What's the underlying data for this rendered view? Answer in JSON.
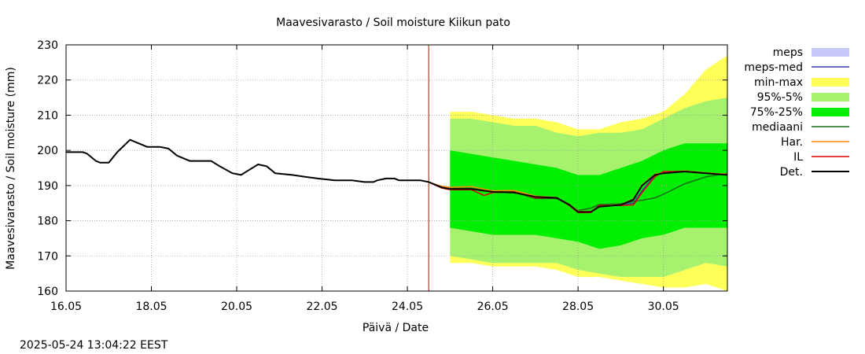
{
  "chart_data": {
    "type": "line",
    "title": "Maavesivarasto / Soil moisture   Kiikun pato",
    "xlabel": "Päivä / Date",
    "ylabel": "Maavesivarasto / Soil moisture (mm)",
    "timestamp": "2025-05-24 13:04:22 EEST",
    "xlim": [
      16.0,
      31.5
    ],
    "ylim": [
      160,
      230
    ],
    "x_unit": "day of May 2025",
    "x_ticks": [
      16,
      18,
      20,
      22,
      24,
      26,
      28,
      30
    ],
    "x_tick_labels": [
      "16.05",
      "18.05",
      "20.05",
      "22.05",
      "24.05",
      "26.05",
      "28.05",
      "30.05"
    ],
    "y_ticks": [
      160,
      170,
      180,
      190,
      200,
      210,
      220,
      230
    ],
    "grid": true,
    "legend_position": "right",
    "forecast_start": 24.5,
    "legend": [
      {
        "label": "meps",
        "color": "#c8c8f8",
        "kind": "band"
      },
      {
        "label": "meps-med",
        "color": "#3a3aa8",
        "kind": "line"
      },
      {
        "label": "min-max",
        "color": "#ffff5a",
        "kind": "band"
      },
      {
        "label": "95%-5%",
        "color": "#a6f26e",
        "kind": "band"
      },
      {
        "label": "75%-25%",
        "color": "#00ee00",
        "kind": "band"
      },
      {
        "label": "mediaani",
        "color": "#1a6e1a",
        "kind": "line"
      },
      {
        "label": "Har.",
        "color": "#ff8c00",
        "kind": "line"
      },
      {
        "label": "IL",
        "color": "#e00000",
        "kind": "line"
      },
      {
        "label": "Det.",
        "color": "#000000",
        "kind": "line"
      }
    ],
    "colors": {
      "forecast_line": "#cc0000",
      "grid": "#a0a0a0"
    },
    "bands": {
      "min-max": {
        "x": [
          25.0,
          25.5,
          26.0,
          26.5,
          27.0,
          27.5,
          28.0,
          28.5,
          29.0,
          29.5,
          30.0,
          30.5,
          31.0,
          31.5
        ],
        "upper": [
          211,
          211,
          210,
          209,
          209,
          208,
          206,
          206,
          208,
          209,
          211,
          216,
          223,
          227
        ],
        "lower": [
          168,
          168,
          167,
          167,
          167,
          166,
          164,
          164,
          163,
          162,
          161,
          161,
          162,
          160
        ]
      },
      "95%-5%": {
        "x": [
          25.0,
          25.5,
          26.0,
          26.5,
          27.0,
          27.5,
          28.0,
          28.5,
          29.0,
          29.5,
          30.0,
          30.5,
          31.0,
          31.5
        ],
        "upper": [
          209,
          209,
          208,
          207,
          207,
          205,
          204,
          205,
          205,
          206,
          209,
          212,
          214,
          215
        ],
        "lower": [
          170,
          169,
          168,
          168,
          168,
          168,
          166,
          165,
          164,
          164,
          164,
          166,
          168,
          167
        ]
      },
      "75%-25%": {
        "x": [
          25.0,
          25.5,
          26.0,
          26.5,
          27.0,
          27.5,
          28.0,
          28.5,
          29.0,
          29.5,
          30.0,
          30.5,
          31.0,
          31.5
        ],
        "upper": [
          200,
          199,
          198,
          197,
          196,
          195,
          193,
          193,
          195,
          197,
          200,
          202,
          202,
          202
        ],
        "lower": [
          178,
          177,
          176,
          176,
          176,
          175,
          174,
          172,
          173,
          175,
          176,
          178,
          178,
          178
        ]
      }
    },
    "series": [
      {
        "name": "Det.",
        "x": [
          16.0,
          16.4,
          16.5,
          16.7,
          16.8,
          17.0,
          17.2,
          17.5,
          17.7,
          17.9,
          18.2,
          18.4,
          18.6,
          18.9,
          19.2,
          19.4,
          19.6,
          19.9,
          20.1,
          20.3,
          20.5,
          20.7,
          20.9,
          21.3,
          21.6,
          21.9,
          22.3,
          22.5,
          22.7,
          23.0,
          23.2,
          23.3,
          23.5,
          23.7,
          23.8,
          24.0,
          24.3,
          24.5
        ],
        "y": [
          199.5,
          199.5,
          199,
          197,
          196.5,
          196.5,
          199.5,
          203,
          202,
          201,
          201,
          200.5,
          198.5,
          197,
          197,
          197,
          195.5,
          193.5,
          193,
          194.5,
          196,
          195.5,
          193.5,
          193,
          192.5,
          192,
          191.5,
          191.5,
          191.5,
          191,
          191,
          191.5,
          192,
          192,
          191.5,
          191.5,
          191.5,
          191
        ]
      },
      {
        "name": "Det. (forecast)",
        "x": [
          24.5,
          24.8,
          25.0,
          25.5,
          26.0,
          26.5,
          27.0,
          27.5,
          27.8,
          28.0,
          28.3,
          28.5,
          29.0,
          29.3,
          29.5,
          29.8,
          30.0,
          30.5,
          31.0,
          31.5
        ],
        "y": [
          191,
          189.5,
          189,
          189,
          188.2,
          188,
          186.8,
          186.5,
          184.5,
          182.5,
          182.5,
          184,
          184.5,
          186,
          190,
          193,
          193.5,
          194,
          193.5,
          193
        ]
      },
      {
        "name": "IL",
        "x": [
          24.5,
          24.8,
          25.0,
          25.5,
          25.8,
          26.0,
          26.5,
          27.0,
          27.5,
          27.8,
          28.0,
          28.3,
          28.5,
          29.0,
          29.3,
          29.5,
          29.8,
          30.0,
          30.5,
          31.0,
          31.5
        ],
        "y": [
          191,
          189.3,
          188.8,
          188.8,
          187.2,
          188,
          188.2,
          186.5,
          186.5,
          184.3,
          182.3,
          182.3,
          184.3,
          184.3,
          184.5,
          188,
          192.5,
          194,
          194,
          193.5,
          193
        ]
      },
      {
        "name": "Har.",
        "x": [
          24.5,
          24.8,
          25.0,
          25.5,
          26.0,
          26.5,
          27.0,
          27.5,
          27.8,
          28.0,
          28.3,
          28.5,
          29.0,
          29.3,
          29.5,
          29.8,
          30.0,
          30.5,
          31.0,
          31.5
        ],
        "y": [
          191,
          189.8,
          189.5,
          189.7,
          188.5,
          188.6,
          187.0,
          186.6,
          184.6,
          182.7,
          182.6,
          184.2,
          184.6,
          186.2,
          190.2,
          193.2,
          193.7,
          194.2,
          193.6,
          193.2
        ]
      },
      {
        "name": "mediaani",
        "x": [
          24.5,
          24.8,
          25.0,
          25.5,
          26.0,
          26.5,
          27.0,
          27.5,
          27.8,
          28.0,
          28.3,
          28.5,
          29.0,
          29.3,
          29.5,
          29.8,
          30.0,
          30.5,
          31.0,
          31.5
        ],
        "y": [
          191,
          189.6,
          189.2,
          189.2,
          188.3,
          188.2,
          186.3,
          186.3,
          184.4,
          182.9,
          183.6,
          184.6,
          184.8,
          185.5,
          185.8,
          186.5,
          187.5,
          190.5,
          192.5,
          193.5
        ]
      },
      {
        "name": "meps-med",
        "x": [
          24.5,
          24.8,
          25.0,
          25.5,
          26.0,
          26.5,
          27.0,
          27.5,
          27.8,
          28.0,
          28.3,
          28.5,
          29.0,
          29.3,
          29.5,
          29.8,
          30.0,
          30.5,
          31.0,
          31.5
        ],
        "y": [
          191,
          189.4,
          189.0,
          189.0,
          188.2,
          188.1,
          186.6,
          186.4,
          184.5,
          182.6,
          182.6,
          184.3,
          184.5,
          185.0,
          188.5,
          192.8,
          193.8,
          194.1,
          193.6,
          193.1
        ]
      }
    ]
  }
}
